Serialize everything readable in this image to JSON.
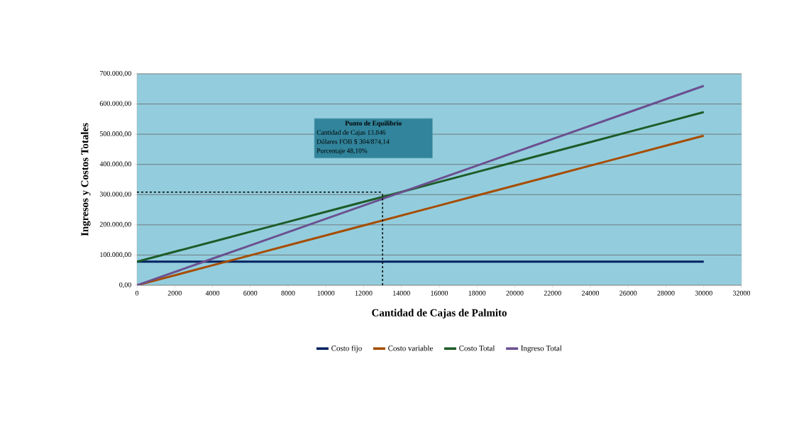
{
  "chart_data": {
    "type": "line",
    "xlabel": "Cantidad de Cajas de Palmito",
    "ylabel": "Ingresos y Costos Totales",
    "x": [
      0,
      2000,
      4000,
      6000,
      8000,
      10000,
      12000,
      14000,
      16000,
      18000,
      20000,
      22000,
      24000,
      26000,
      28000,
      30000
    ],
    "series": [
      {
        "name": "Costo fijo",
        "color": "#002060",
        "values": [
          78000,
          78000,
          78000,
          78000,
          78000,
          78000,
          78000,
          78000,
          78000,
          78000,
          78000,
          78000,
          78000,
          78000,
          78000,
          78000
        ]
      },
      {
        "name": "Costo variable",
        "color": "#A64D00",
        "values": [
          0,
          33000,
          66000,
          99000,
          132000,
          165000,
          198000,
          231000,
          264000,
          297000,
          330000,
          363000,
          396000,
          429000,
          462000,
          495000
        ]
      },
      {
        "name": "Costo Total",
        "color": "#1E5B28",
        "values": [
          78000,
          111000,
          144000,
          177000,
          210000,
          243000,
          276000,
          309000,
          342000,
          375000,
          408000,
          441000,
          474000,
          507000,
          540000,
          573000
        ]
      },
      {
        "name": "Ingreso Total",
        "color": "#6B5090",
        "values": [
          0,
          44000,
          88000,
          132000,
          176000,
          220000,
          264000,
          308000,
          352000,
          396000,
          440000,
          484000,
          528000,
          572000,
          616000,
          660000
        ]
      }
    ],
    "xlim": [
      0,
      32000
    ],
    "xticks": [
      0,
      2000,
      4000,
      6000,
      8000,
      10000,
      12000,
      14000,
      16000,
      18000,
      20000,
      22000,
      24000,
      26000,
      28000,
      30000,
      32000
    ],
    "ylim": [
      0,
      700000
    ],
    "yticks": [
      {
        "value": 0,
        "label": "0,00"
      },
      {
        "value": 100000,
        "label": "100.000,00"
      },
      {
        "value": 200000,
        "label": "200.000,00"
      },
      {
        "value": 300000,
        "label": "300.000,00"
      },
      {
        "value": 400000,
        "label": "400.000,00"
      },
      {
        "value": 500000,
        "label": "500.000,00"
      },
      {
        "value": 600000,
        "label": "600.000,00"
      },
      {
        "value": 700000,
        "label": "700.000,00"
      }
    ],
    "grid": "y",
    "legend": "bottom",
    "marker": "none",
    "line_style": "solid",
    "ref_lines": [
      {
        "axis": "x",
        "value": 13000,
        "color": "#000000",
        "line_style": "dashed"
      },
      {
        "axis": "y",
        "value": 308000,
        "color": "#000000",
        "line_style": "dashed"
      }
    ],
    "annotations": [
      "Punto de Equilibrio",
      "Cantidad de Cajas 13.846",
      "Dólares FOB  $ 304/874,14",
      "Porcentaje 48,10%"
    ]
  }
}
